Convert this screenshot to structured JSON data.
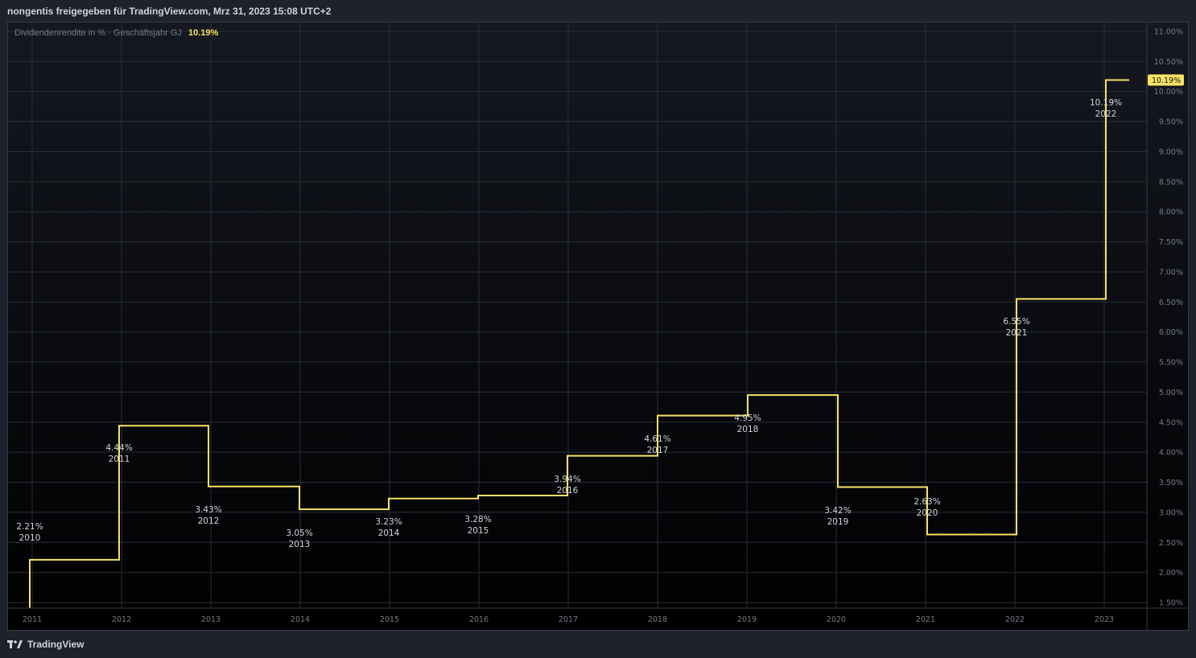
{
  "header": {
    "text": "nongentis freigegeben für TradingView.com, Mrz 31, 2023 15:08 UTC+2"
  },
  "legend": {
    "label": "Dividendenrendite in % · Geschäftsjahr GJ",
    "value": "10.19%"
  },
  "footer": {
    "brand": "TradingView",
    "logo_icon": "tradingview-logo-icon"
  },
  "colors": {
    "line": "#f7e264",
    "grid": "#2a2e39",
    "axis_text": "#787b86",
    "label_text": "#d1d4dc",
    "price_tag_bg": "#f7e264"
  },
  "chart_data": {
    "type": "line",
    "step": true,
    "series": [
      {
        "values": [
          2.21,
          4.44,
          3.43,
          3.05,
          3.23,
          3.28,
          3.94,
          4.61,
          4.95,
          3.42,
          2.63,
          6.55,
          10.19
        ]
      }
    ],
    "fiscal_years": [
      "2010",
      "2011",
      "2012",
      "2013",
      "2014",
      "2015",
      "2016",
      "2017",
      "2018",
      "2019",
      "2020",
      "2021",
      "2022"
    ],
    "point_labels": [
      "2.21%",
      "4.44%",
      "3.43%",
      "3.05%",
      "3.23%",
      "3.28%",
      "3.94%",
      "4.61%",
      "4.95%",
      "3.42%",
      "2.63%",
      "6.55%",
      "10.19%"
    ],
    "x_ticks": [
      "2011",
      "2012",
      "2013",
      "2014",
      "2015",
      "2016",
      "2017",
      "2018",
      "2019",
      "2020",
      "2021",
      "2022",
      "2023"
    ],
    "y_ticks": [
      "1.50%",
      "2.00%",
      "2.50%",
      "3.00%",
      "3.50%",
      "4.00%",
      "4.50%",
      "5.00%",
      "5.50%",
      "6.00%",
      "6.50%",
      "7.00%",
      "7.50%",
      "8.00%",
      "8.50%",
      "9.00%",
      "9.50%",
      "10.00%",
      "10.50%",
      "11.00%"
    ],
    "y_tick_values": [
      1.5,
      2.0,
      2.5,
      3.0,
      3.5,
      4.0,
      4.5,
      5.0,
      5.5,
      6.0,
      6.5,
      7.0,
      7.5,
      8.0,
      8.5,
      9.0,
      9.5,
      10.0,
      10.5,
      11.0
    ],
    "ylim": [
      1.5,
      11.0
    ],
    "last_value_tag": "10.19%",
    "grid": true
  }
}
